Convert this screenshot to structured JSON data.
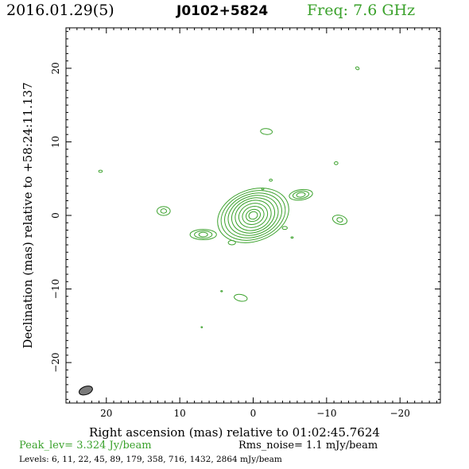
{
  "header": {
    "date": "2016.01.29(5)",
    "source": "J0102+5824",
    "freq": "Freq: 7.6 GHz"
  },
  "chart_data": {
    "type": "contour",
    "title": "J0102+5824",
    "xlabel": "Right ascension (mas) relative to 01:02:45.7624",
    "ylabel": "Declination (mas) relative to +58:24:11.137",
    "xlim": [
      25.5,
      -25.5
    ],
    "ylim": [
      -25.5,
      25.5
    ],
    "xticks": [
      20,
      10,
      0,
      -10,
      -20
    ],
    "yticks": [
      20,
      10,
      0,
      -10,
      -20
    ],
    "xtick_labels": [
      "20",
      "10",
      "0",
      "−10",
      "−20"
    ],
    "ytick_labels": [
      "20",
      "10",
      "0",
      "−10",
      "−20"
    ],
    "contour_color": "#3aa12b",
    "beam_color": "#7a7a7a",
    "core": {
      "x": 0,
      "y": 0,
      "rx": [
        0.6,
        1.0,
        1.5,
        2.0,
        2.5,
        3.0,
        3.5,
        4.0,
        4.5,
        5.0
      ],
      "ry": [
        0.5,
        0.8,
        1.2,
        1.6,
        2.0,
        2.3,
        2.6,
        2.9,
        3.2,
        3.5
      ],
      "angle": -20
    },
    "components": [
      {
        "x": 6.8,
        "y": -2.6,
        "rx": [
          0.6,
          1.2,
          1.8
        ],
        "ry": [
          0.3,
          0.5,
          0.7
        ],
        "angle": 0
      },
      {
        "x": -6.5,
        "y": 2.8,
        "rx": [
          0.6,
          1.1,
          1.6
        ],
        "ry": [
          0.3,
          0.5,
          0.7
        ],
        "angle": -8
      },
      {
        "x": 12.2,
        "y": 0.6,
        "rx": [
          0.4,
          0.9
        ],
        "ry": [
          0.3,
          0.6
        ],
        "angle": 0
      },
      {
        "x": -11.8,
        "y": -0.6,
        "rx": [
          0.4,
          1.0
        ],
        "ry": [
          0.3,
          0.6
        ],
        "angle": 15
      },
      {
        "x": -1.8,
        "y": 11.4,
        "rx": [
          0.8
        ],
        "ry": [
          0.4
        ],
        "angle": 5
      },
      {
        "x": 1.7,
        "y": -11.2,
        "rx": [
          0.9
        ],
        "ry": [
          0.45
        ],
        "angle": 10
      },
      {
        "x": 2.9,
        "y": -3.7,
        "rx": [
          0.5
        ],
        "ry": [
          0.3
        ],
        "angle": 0
      },
      {
        "x": -11.3,
        "y": 7.1,
        "rx": [
          0.25
        ],
        "ry": [
          0.2
        ],
        "angle": 0
      },
      {
        "x": -14.2,
        "y": 20.0,
        "rx": [
          0.25
        ],
        "ry": [
          0.18
        ],
        "angle": 30
      },
      {
        "x": 20.8,
        "y": 6.0,
        "rx": [
          0.25
        ],
        "ry": [
          0.15
        ],
        "angle": 0
      },
      {
        "x": -4.3,
        "y": -1.7,
        "rx": [
          0.35
        ],
        "ry": [
          0.2
        ],
        "angle": 0
      },
      {
        "x": -2.4,
        "y": 4.8,
        "rx": [
          0.2
        ],
        "ry": [
          0.15
        ],
        "angle": 0
      },
      {
        "x": -1.3,
        "y": 3.6,
        "rx": [
          0.15
        ],
        "ry": [
          0.12
        ],
        "angle": 0
      },
      {
        "x": -5.3,
        "y": -3.0,
        "rx": [
          0.15
        ],
        "ry": [
          0.1
        ],
        "angle": 0
      },
      {
        "x": 4.3,
        "y": -10.3,
        "rx": [
          0.12
        ],
        "ry": [
          0.08
        ],
        "angle": 0
      },
      {
        "x": 7.0,
        "y": -15.2,
        "rx": [
          0.1
        ],
        "ry": [
          0.08
        ],
        "angle": 0
      }
    ],
    "beam": {
      "x": 22.8,
      "y": -23.8,
      "major": 1.9,
      "minor": 1.1,
      "angle": -20
    }
  },
  "footer": {
    "peak": "Peak_lev=  3.324 Jy/beam",
    "rms": "Rms_noise=  1.1 mJy/beam",
    "levels": "Levels:   6,  11,  22,  45,  89, 179, 358, 716, 1432, 2864 mJy/beam"
  }
}
